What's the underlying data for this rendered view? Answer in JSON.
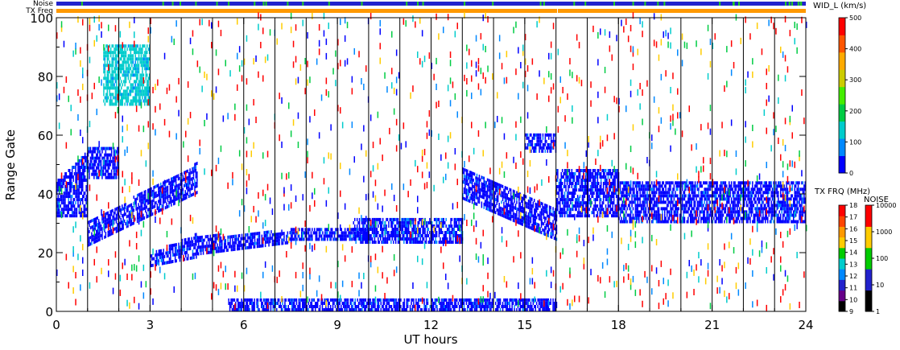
{
  "chart_data": {
    "type": "heatmap",
    "title": "",
    "xlabel": "UT hours",
    "ylabel": "Range Gate",
    "xlim": [
      0,
      24
    ],
    "ylim": [
      0,
      100
    ],
    "x_ticks": [
      "0",
      "3",
      "6",
      "9",
      "12",
      "15",
      "18",
      "21",
      "24"
    ],
    "y_ticks": [
      "0",
      "20",
      "40",
      "60",
      "80",
      "100"
    ],
    "hour_scan_boundaries": [
      1,
      2,
      3,
      4,
      5,
      6,
      7,
      8,
      9,
      10,
      11,
      12,
      13,
      14,
      15,
      16,
      17,
      18,
      19,
      20,
      21,
      22,
      23
    ],
    "top_strips": [
      {
        "label": "Noise",
        "color": "#2222cc",
        "accent": "#22cc22"
      },
      {
        "label": "TX Freq",
        "color": "#ff9900",
        "gap_after_hour": 16
      }
    ],
    "colorbars": [
      {
        "title": "WID_L (km/s)",
        "ticks": [
          "0",
          "100",
          "200",
          "300",
          "400",
          "500"
        ],
        "colors": [
          "#0000ff",
          "#0088ff",
          "#00cccc",
          "#00cc44",
          "#44ee00",
          "#cccc00",
          "#ffaa00",
          "#ff5500",
          "#ff0000"
        ]
      },
      {
        "title": "TX FRQ (MHz)",
        "ticks": [
          "9",
          "10",
          "11",
          "12",
          "13",
          "14",
          "15",
          "16",
          "17",
          "18"
        ],
        "colors": [
          "#000000",
          "#660088",
          "#2222cc",
          "#0088ff",
          "#00cccc",
          "#00cc00",
          "#ffcc00",
          "#ff9900",
          "#ff4400",
          "#ff0000"
        ]
      },
      {
        "title": "NOISE",
        "ticks": [
          "1",
          "10",
          "100",
          "1000",
          "10000"
        ],
        "colors": [
          "#000000",
          "#2222cc",
          "#00cc00",
          "#ffcc00",
          "#ff0000"
        ]
      }
    ],
    "echo_bands": [
      {
        "t_start": 0.0,
        "t_end": 1.0,
        "g_start": 32,
        "g_end": 44,
        "g_end_at_end": 54,
        "color": "#0000ff"
      },
      {
        "t_start": 1.0,
        "t_end": 2.0,
        "g_start": 45,
        "g_end": 55,
        "color": "#0000ff"
      },
      {
        "t_start": 1.0,
        "t_end": 4.5,
        "g_start": 22,
        "g_end": 30,
        "g_start_at_end": 40,
        "g_end_at_end": 50,
        "color": "#0000ff"
      },
      {
        "t_start": 3.0,
        "t_end": 4.5,
        "g_start": 15,
        "g_end": 19,
        "g_start_at_end": 18,
        "g_end_at_end": 26,
        "color": "#0000ff"
      },
      {
        "t_start": 4.5,
        "t_end": 7.5,
        "g_start": 19,
        "g_end": 25,
        "g_start_at_end": 23,
        "g_end_at_end": 27,
        "color": "#0000ff"
      },
      {
        "t_start": 7.5,
        "t_end": 10.0,
        "g_start": 24,
        "g_end": 28,
        "color": "#0000ff"
      },
      {
        "t_start": 9.5,
        "t_end": 13.0,
        "g_start": 23,
        "g_end": 31,
        "color": "#0000ff"
      },
      {
        "t_start": 13.0,
        "t_end": 16.0,
        "g_start": 38,
        "g_end": 48,
        "g_start_at_end": 24,
        "g_end_at_end": 34,
        "color": "#0000ff"
      },
      {
        "t_start": 15.0,
        "t_end": 16.0,
        "g_start": 54,
        "g_end": 60,
        "color": "#0000ff"
      },
      {
        "t_start": 16.0,
        "t_end": 18.0,
        "g_start": 32,
        "g_end": 48,
        "color": "#0000ff"
      },
      {
        "t_start": 18.0,
        "t_end": 24.0,
        "g_start": 30,
        "g_end": 44,
        "color": "#0000ff"
      },
      {
        "t_start": 5.5,
        "t_end": 16.0,
        "g_start": 0,
        "g_end": 4,
        "color": "#0000ff"
      },
      {
        "t_start": 1.5,
        "t_end": 3.0,
        "g_start": 70,
        "g_end": 90,
        "color": "#00cccc"
      }
    ],
    "scatter_colors": [
      "#ff0000",
      "#0000ff",
      "#00cccc",
      "#0088ff",
      "#ff0000",
      "#00cc44",
      "#ff0000",
      "#ffcc00"
    ],
    "scatter_density": 0.16
  }
}
